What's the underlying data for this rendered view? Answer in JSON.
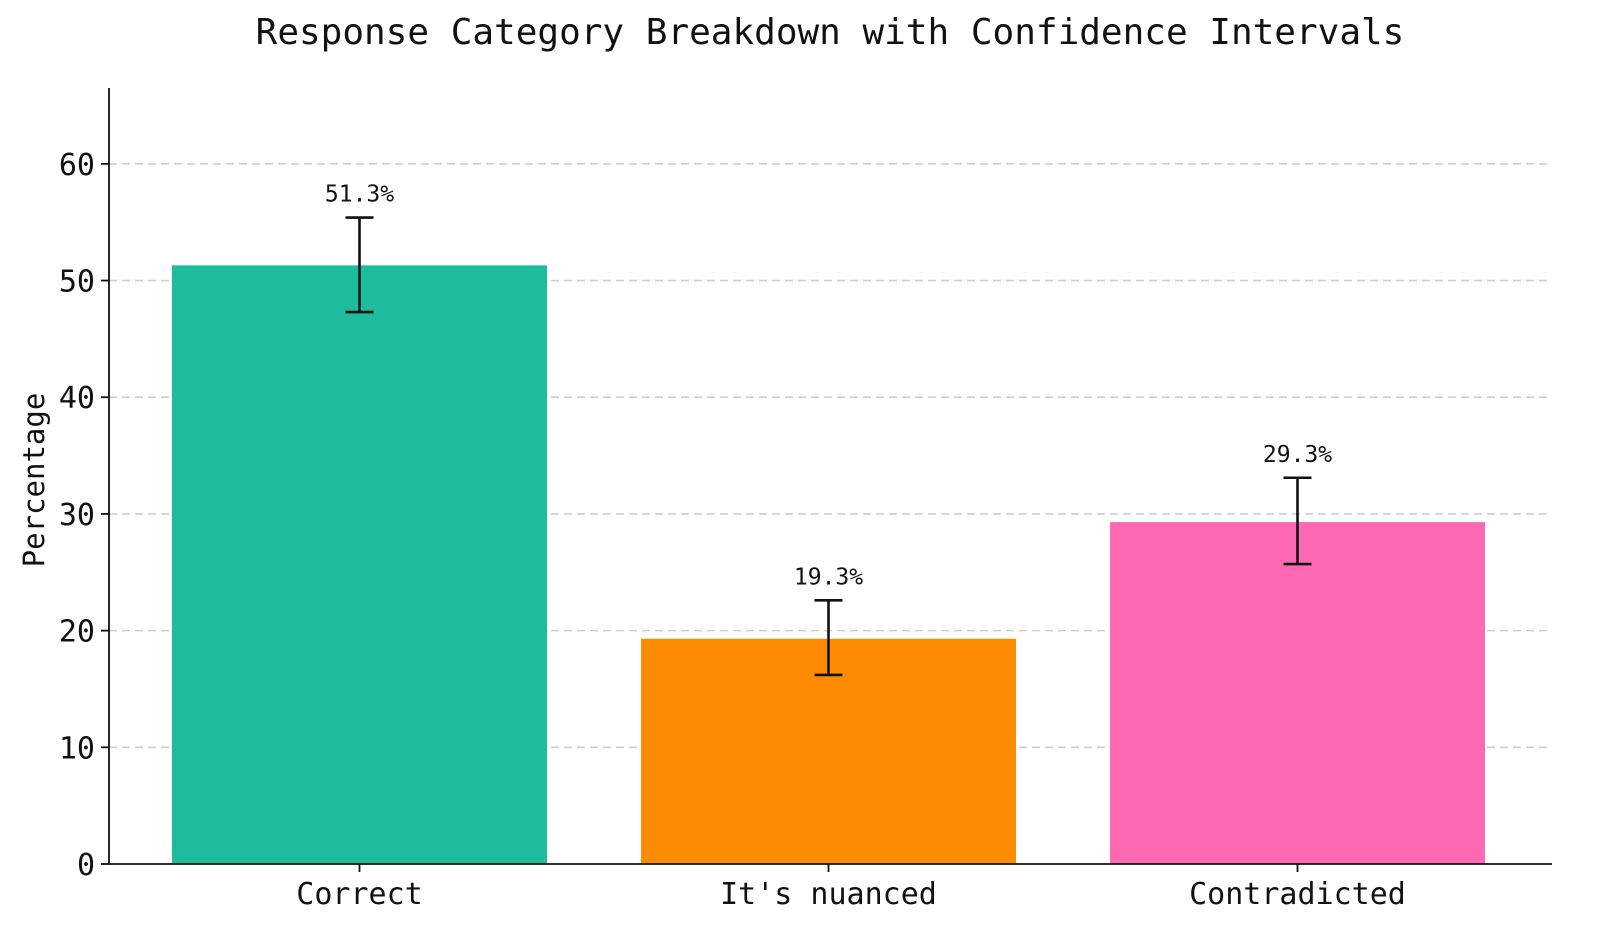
{
  "chart_data": {
    "type": "bar",
    "title": "Response Category Breakdown with Confidence Intervals",
    "xlabel": "",
    "ylabel": "Percentage",
    "categories": [
      "Correct",
      "It's nuanced",
      "Contradicted"
    ],
    "values": [
      51.3,
      19.3,
      29.3
    ],
    "error_low": [
      47.3,
      16.2,
      25.7
    ],
    "error_high": [
      55.4,
      22.6,
      33.1
    ],
    "data_labels": [
      "51.3%",
      "19.3%",
      "29.3%"
    ],
    "colors": [
      "#1dbc9c",
      "#ff8c00",
      "#ff69b4"
    ],
    "ylim": [
      0,
      66.5
    ],
    "yticks": [
      0,
      10,
      20,
      30,
      40,
      50,
      60
    ],
    "grid": "horizontal dashed",
    "legend": "none"
  }
}
